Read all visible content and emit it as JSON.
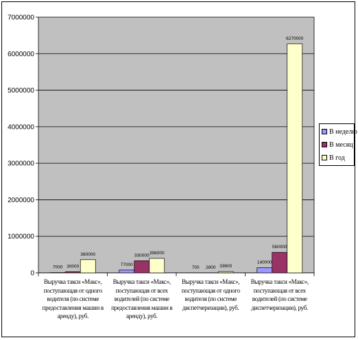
{
  "chart_data": {
    "type": "bar",
    "title": "",
    "xlabel": "",
    "ylabel": "",
    "ylim": [
      0,
      7000000
    ],
    "y_ticks": [
      "0",
      "1000000",
      "2000000",
      "3000000",
      "4000000",
      "5000000",
      "6000000",
      "7000000"
    ],
    "grid": true,
    "legend_position": "right",
    "plot_background": "#c0c0c0",
    "categories": [
      "Выручка такси «Макс», поступающая от одного водителя (по системе предоставления машин в аренду), руб.",
      "Выручка такси «Макс», поступающая от всех водителей (по системе предоставления машин в аренду), руб.",
      "Выручка такси «Макс», поступающая от одного водителя (по системе диспетчеризации), руб.",
      "Выручка такси «Макс», поступающая от всех водителей (по системе диспетчеризации), руб."
    ],
    "series": [
      {
        "name": "В неделю",
        "color": "#9999ff",
        "values": [
          7000,
          77000,
          700,
          140000
        ],
        "labels": [
          "7000",
          "77000",
          "700",
          "140000"
        ]
      },
      {
        "name": "В месяц",
        "color": "#993366",
        "values": [
          30000,
          330000,
          2800,
          560000
        ],
        "labels": [
          "30000",
          "330000",
          "2800",
          "560000"
        ]
      },
      {
        "name": "В год",
        "color": "#ffffcc",
        "values": [
          360000,
          396000,
          33600,
          6270000
        ],
        "labels": [
          "360000",
          "396000",
          "33600",
          "6270000"
        ]
      }
    ]
  }
}
